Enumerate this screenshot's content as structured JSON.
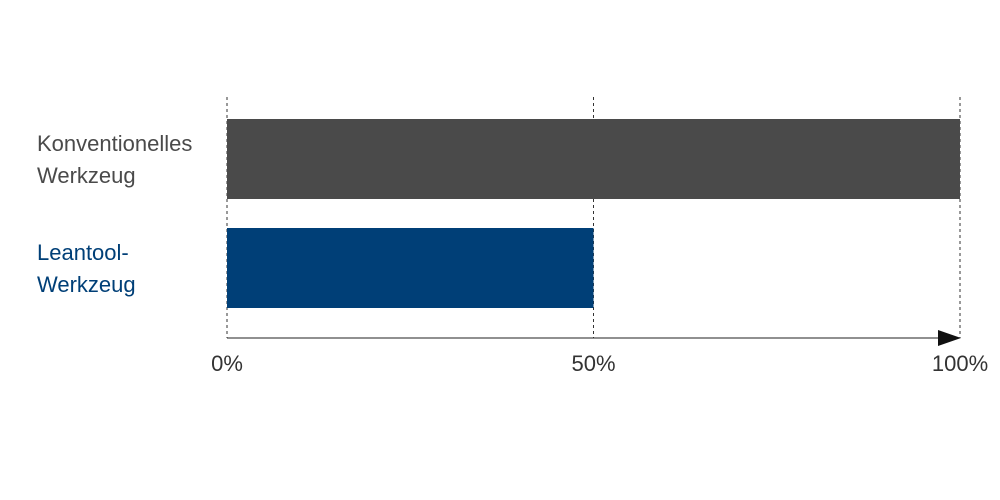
{
  "chart_data": {
    "type": "bar",
    "orientation": "horizontal",
    "categories": [
      [
        "Konventionelles",
        "Werkzeug"
      ],
      [
        "Leantool-",
        "Werkzeug"
      ]
    ],
    "values": [
      100,
      50
    ],
    "bar_colors": [
      "#4a4a4a",
      "#003f77"
    ],
    "label_colors": [
      "#4a4a4a",
      "#003f77"
    ],
    "xlim": [
      0,
      100
    ],
    "xticks": [
      0,
      50,
      100
    ],
    "xtick_labels": [
      "0%",
      "50%",
      "100%"
    ],
    "grid": "vertical dashed at ticks",
    "axis_line_color": "#222222"
  }
}
